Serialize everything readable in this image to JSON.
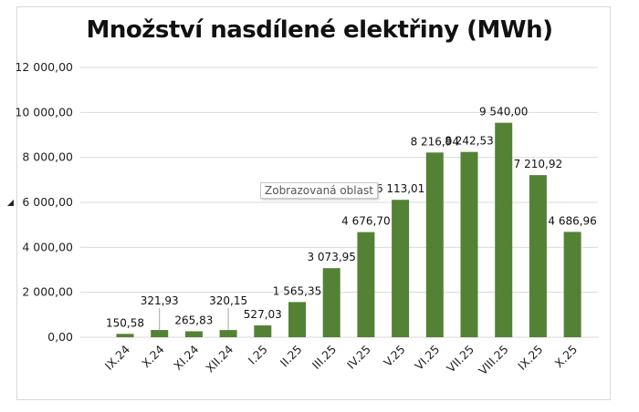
{
  "chart_data": {
    "type": "bar",
    "title": "Množství nasdílené elektřiny (MWh)",
    "categories": [
      "IX.24",
      "X.24",
      "XI.24",
      "XII.24",
      "I.25",
      "II.25",
      "III.25",
      "IV.25",
      "V.25",
      "VI.25",
      "VII.25",
      "VIII.25",
      "IX.25",
      "X.25"
    ],
    "values": [
      150.58,
      321.93,
      265.83,
      320.15,
      527.03,
      1565.35,
      3073.95,
      4676.7,
      6113.01,
      8216.94,
      8242.53,
      9540.0,
      7210.92,
      4686.96
    ],
    "data_labels": [
      "150,58",
      "321,93",
      "265,83",
      "320,15",
      "527,03",
      "1 565,35",
      "3 073,95",
      "4 676,70",
      "6 113,01",
      "8 216,94",
      "8 242,53",
      "9 540,00",
      "7 210,92",
      "4 686,96"
    ],
    "y_ticks": [
      "0,00",
      "2 000,00",
      "4 000,00",
      "6 000,00",
      "8 000,00",
      "10 000,00",
      "12 000,00"
    ],
    "ylim": [
      0,
      12000
    ],
    "grid": true,
    "legend": "none",
    "bar_color": "#548235",
    "grid_color": "#d9d9d9"
  },
  "tooltip": "Zobrazovaná oblast"
}
